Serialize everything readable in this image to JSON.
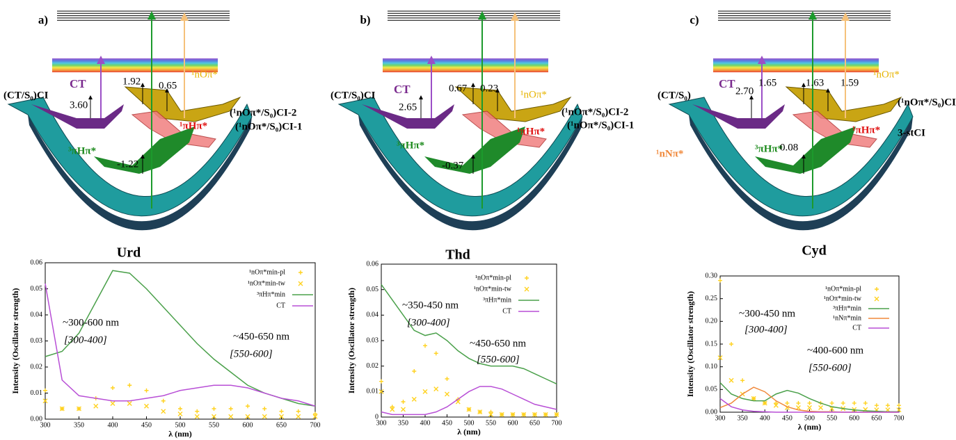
{
  "panels": [
    {
      "label": "a)",
      "molecule": "Urd",
      "texts": [
        "CT",
        "(CT/S₀)CI",
        "3.60",
        "1.92",
        "0.65",
        "¹nOπ*",
        "(¹nOπ*/S₀)CI-2",
        "(¹nOπ*/S₀)CI-1",
        "¹πHπ*",
        "³πHπ*",
        "-1.22"
      ]
    },
    {
      "label": "b)",
      "molecule": "Thd",
      "texts": [
        "(CT/S₀)CI",
        "CT",
        "2.65",
        "0.67",
        "0.23",
        "¹nOπ*",
        "(¹nOπ*/S₀)CI-2",
        "(¹nOπ*/S₀)CI-1",
        "¹πHπ*",
        "³πHπ*",
        "-0.37"
      ]
    },
    {
      "label": "c)",
      "molecule": "Cyd",
      "texts": [
        "CT",
        "(CT/S₀)",
        "2.70",
        "1.65",
        "1.63",
        "1.59",
        "¹nOπ*",
        "(¹nOπ*/S₀)CI",
        "¹nNπ*",
        "³πHπ*",
        "0.08",
        "¹πHπ*",
        "3-stCI"
      ]
    }
  ],
  "chart_data": [
    {
      "type": "line",
      "xlabel": "λ (nm)",
      "ylabel": "Intensity (Oscillator strength)",
      "x": [
        300,
        325,
        350,
        375,
        400,
        425,
        450,
        475,
        500,
        525,
        550,
        575,
        600,
        625,
        650,
        675,
        700
      ],
      "xlim": [
        300,
        700
      ],
      "ylim": [
        0,
        0.06
      ],
      "xticks": [
        300,
        350,
        400,
        450,
        500,
        550,
        600,
        650,
        700
      ],
      "yticks": [
        {
          "value": 0,
          "label": "0.00"
        },
        0.01,
        0.02,
        0.03,
        0.04,
        0.05,
        0.06
      ],
      "series": [
        {
          "name": "¹nOπ*min-pl",
          "color": "#ffd21f",
          "marker": "+",
          "values": [
            0.011,
            0.004,
            0.004,
            0.008,
            0.012,
            0.013,
            0.011,
            0.007,
            0.004,
            0.003,
            0.004,
            0.004,
            0.005,
            0.004,
            0.003,
            0.003,
            0.002
          ]
        },
        {
          "name": "¹nOπ*min-tw",
          "color": "#ffd21f",
          "marker": "x",
          "values": [
            0.007,
            0.004,
            0.004,
            0.005,
            0.006,
            0.006,
            0.005,
            0.003,
            0.002,
            0.001,
            0.001,
            0.001,
            0.001,
            0.001,
            0.001,
            0.001,
            0.001
          ]
        },
        {
          "name": "³πHπ*min",
          "color": "#4aa04a",
          "values": [
            0.024,
            0.026,
            0.033,
            0.045,
            0.057,
            0.056,
            0.05,
            0.043,
            0.036,
            0.029,
            0.023,
            0.018,
            0.013,
            0.01,
            0.008,
            0.006,
            0.005
          ]
        },
        {
          "name": "CT",
          "color": "#b84fd6",
          "values": [
            0.052,
            0.015,
            0.009,
            0.008,
            0.007,
            0.007,
            0.008,
            0.009,
            0.011,
            0.012,
            0.013,
            0.013,
            0.012,
            0.01,
            0.008,
            0.007,
            0.005
          ]
        }
      ],
      "annotations": [
        "~300-600 nm",
        "[300-400]",
        "~450-650 nm",
        "[550-600]"
      ]
    },
    {
      "type": "line",
      "xlabel": "λ (nm)",
      "ylabel": "Intensity (Oscillator strength)",
      "x": [
        300,
        325,
        350,
        375,
        400,
        425,
        450,
        475,
        500,
        525,
        550,
        575,
        600,
        625,
        650,
        675,
        700
      ],
      "xlim": [
        300,
        700
      ],
      "ylim": [
        0,
        0.06
      ],
      "xticks": [
        300,
        350,
        400,
        450,
        500,
        550,
        600,
        650,
        700
      ],
      "yticks": [
        0,
        0.01,
        0.02,
        0.03,
        0.04,
        0.05,
        0.06
      ],
      "series": [
        {
          "name": "¹nOπ*min-pl",
          "color": "#ffd21f",
          "marker": "+",
          "values": [
            0.014,
            0.004,
            0.006,
            0.018,
            0.028,
            0.025,
            0.015,
            0.007,
            0.003,
            0.002,
            0.002,
            0.001,
            0.001,
            0.001,
            0.001,
            0.001,
            0.001
          ]
        },
        {
          "name": "¹nOπ*min-tw",
          "color": "#ffd21f",
          "marker": "x",
          "values": [
            0.01,
            0.003,
            0.003,
            0.007,
            0.01,
            0.011,
            0.009,
            0.006,
            0.003,
            0.002,
            0.001,
            0.001,
            0.001,
            0.001,
            0.001,
            0.001,
            0.001
          ]
        },
        {
          "name": "³πHπ*min",
          "color": "#4aa04a",
          "values": [
            0.052,
            0.046,
            0.04,
            0.034,
            0.032,
            0.033,
            0.03,
            0.026,
            0.023,
            0.021,
            0.02,
            0.02,
            0.02,
            0.019,
            0.017,
            0.015,
            0.013
          ]
        },
        {
          "name": "CT",
          "color": "#b84fd6",
          "values": [
            0.002,
            0.001,
            0.001,
            0.001,
            0.001,
            0.002,
            0.004,
            0.007,
            0.01,
            0.012,
            0.012,
            0.011,
            0.009,
            0.007,
            0.005,
            0.004,
            0.003
          ]
        }
      ],
      "annotations": [
        "~350-450 nm",
        "[300-400]",
        "~450-650 nm",
        "[550-600]"
      ]
    },
    {
      "type": "line",
      "xlabel": "λ (nm)",
      "ylabel": "Intensity (Oscillator strength)",
      "x": [
        300,
        325,
        350,
        375,
        400,
        425,
        450,
        475,
        500,
        525,
        550,
        575,
        600,
        625,
        650,
        675,
        700
      ],
      "xlim": [
        300,
        700
      ],
      "ylim": [
        0,
        0.3
      ],
      "xticks": [
        300,
        350,
        400,
        450,
        500,
        550,
        600,
        650,
        700
      ],
      "yticks": [
        {
          "value": 0,
          "label": "0.00"
        },
        0.05,
        {
          "value": 0.1,
          "label": "0.10"
        },
        0.15,
        {
          "value": 0.2,
          "label": "0.20"
        },
        0.25,
        {
          "value": 0.3,
          "label": "0.30"
        }
      ],
      "series": [
        {
          "name": "¹nOπ*min-pl",
          "color": "#ffd21f",
          "marker": "+",
          "values": [
            0.29,
            0.15,
            0.07,
            0.03,
            0.02,
            0.02,
            0.02,
            0.02,
            0.02,
            0.02,
            0.02,
            0.02,
            0.02,
            0.02,
            0.015,
            0.015,
            0.015
          ]
        },
        {
          "name": "¹nOπ*min-tw",
          "color": "#ffd21f",
          "marker": "x",
          "values": [
            0.12,
            0.07,
            0.04,
            0.03,
            0.02,
            0.015,
            0.01,
            0.01,
            0.01,
            0.01,
            0.008,
            0.008,
            0.006,
            0.006,
            0.005,
            0.005,
            0.005
          ]
        },
        {
          "name": "³πHπ*min",
          "color": "#4aa04a",
          "values": [
            0.065,
            0.04,
            0.03,
            0.025,
            0.025,
            0.04,
            0.048,
            0.042,
            0.03,
            0.02,
            0.012,
            0.008,
            0.005,
            0.003,
            0.002,
            0.001,
            0.001
          ]
        },
        {
          "name": "¹nNπ*min",
          "color": "#f0883a",
          "values": [
            0.01,
            0.02,
            0.04,
            0.055,
            0.045,
            0.025,
            0.012,
            0.005,
            0.002,
            0.001,
            0.001,
            0,
            0,
            0,
            0,
            0,
            0
          ]
        },
        {
          "name": "CT",
          "color": "#b84fd6",
          "values": [
            0.03,
            0.012,
            0.005,
            0.002,
            0.001,
            0,
            0,
            0,
            0,
            0,
            0,
            0,
            0,
            0,
            0,
            0,
            0
          ]
        }
      ],
      "annotations": [
        "~300-450 nm",
        "[300-400]",
        "~400-600 nm",
        "[550-600]"
      ]
    }
  ]
}
